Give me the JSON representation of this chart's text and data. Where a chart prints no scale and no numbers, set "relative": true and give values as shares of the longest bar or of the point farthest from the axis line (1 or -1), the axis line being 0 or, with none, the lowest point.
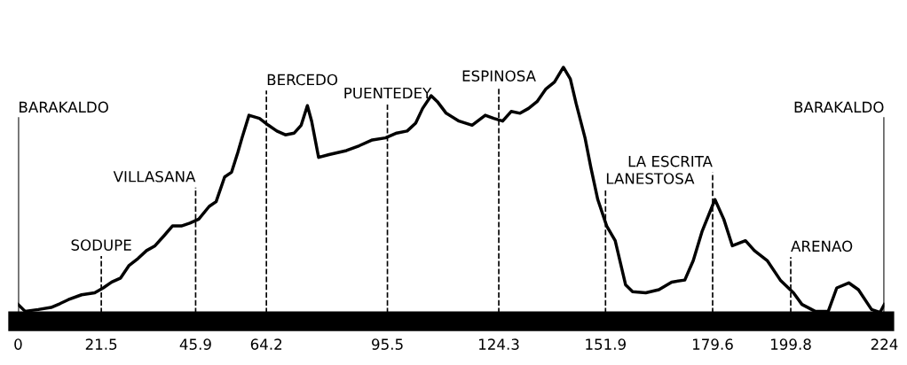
{
  "chart_data": {
    "type": "line",
    "relative": true,
    "x": [
      0,
      1.8,
      5.2,
      8.5,
      10.8,
      13.0,
      16.4,
      19.8,
      22.0,
      24.2,
      26.5,
      28.7,
      31.0,
      33.2,
      35.4,
      37.7,
      39.9,
      42.2,
      44.4,
      46.7,
      49.4,
      51.2,
      53.4,
      55.2,
      56.8,
      57.9,
      59.7,
      62.4,
      64.7,
      66.9,
      69.1,
      71.4,
      73.2,
      74.8,
      75.9,
      77.7,
      80.4,
      84.9,
      88.2,
      91.6,
      95.0,
      97.9,
      100.6,
      102.8,
      104.6,
      106.8,
      108.4,
      110.7,
      114.0,
      117.4,
      120.8,
      123.0,
      125.3,
      127.5,
      129.8,
      132.0,
      134.2,
      136.5,
      138.7,
      141.0,
      142.8,
      144.3,
      146.6,
      148.1,
      149.9,
      152.2,
      154.4,
      157.1,
      158.9,
      162.3,
      165.7,
      169.0,
      172.4,
      174.6,
      176.9,
      180.2,
      182.5,
      184.7,
      188.1,
      190.4,
      193.7,
      197.1,
      200.5,
      202.7,
      206.1,
      209.5,
      211.7,
      214.8,
      217.3,
      220.7,
      222.9,
      224.0
    ],
    "series": [
      {
        "color": "#000000",
        "values": [
          0.066,
          0.039,
          0.046,
          0.054,
          0.069,
          0.085,
          0.104,
          0.112,
          0.131,
          0.154,
          0.17,
          0.22,
          0.247,
          0.278,
          0.297,
          0.336,
          0.375,
          0.375,
          0.386,
          0.402,
          0.452,
          0.471,
          0.568,
          0.587,
          0.664,
          0.722,
          0.811,
          0.799,
          0.772,
          0.749,
          0.734,
          0.741,
          0.772,
          0.849,
          0.788,
          0.645,
          0.656,
          0.672,
          0.691,
          0.714,
          0.722,
          0.741,
          0.749,
          0.78,
          0.838,
          0.888,
          0.865,
          0.819,
          0.788,
          0.772,
          0.811,
          0.799,
          0.788,
          0.826,
          0.819,
          0.838,
          0.865,
          0.915,
          0.942,
          1.0,
          0.954,
          0.857,
          0.722,
          0.606,
          0.479,
          0.375,
          0.317,
          0.143,
          0.116,
          0.112,
          0.124,
          0.154,
          0.162,
          0.239,
          0.355,
          0.479,
          0.401,
          0.297,
          0.317,
          0.278,
          0.239,
          0.162,
          0.112,
          0.066,
          0.039,
          0.039,
          0.131,
          0.151,
          0.124,
          0.046,
          0.035,
          0.066
        ]
      }
    ],
    "xlim": [
      0,
      224
    ],
    "xticks": [
      0,
      21.5,
      45.9,
      64.2,
      95.5,
      124.3,
      151.9,
      179.6,
      199.8,
      224
    ],
    "grid": false,
    "line_style": "solid",
    "marker": "none",
    "ref_lines": [
      {
        "axis": "x",
        "value": 0,
        "label": "BARAKALDO",
        "line_style": "solid"
      },
      {
        "axis": "x",
        "value": 224,
        "label": "BARAKALDO",
        "line_style": "solid"
      },
      {
        "axis": "x",
        "value": 21.5,
        "label": "SODUPE",
        "line_style": "dashed"
      },
      {
        "axis": "x",
        "value": 45.9,
        "label": "VILLASANA",
        "line_style": "dashed"
      },
      {
        "axis": "x",
        "value": 64.2,
        "label": "BERCEDO",
        "line_style": "dashed"
      },
      {
        "axis": "x",
        "value": 95.5,
        "label": "PUENTEDEY",
        "line_style": "dashed"
      },
      {
        "axis": "x",
        "value": 124.3,
        "label": "ESPINOSA",
        "line_style": "dashed"
      },
      {
        "axis": "x",
        "value": 151.9,
        "label": "LANESTOSA",
        "line_style": "dashed"
      },
      {
        "axis": "x",
        "value": 179.6,
        "label": "LA ESCRITA",
        "line_style": "dashed"
      },
      {
        "axis": "x",
        "value": 199.8,
        "label": "ARENAO",
        "line_style": "dashed"
      }
    ]
  }
}
